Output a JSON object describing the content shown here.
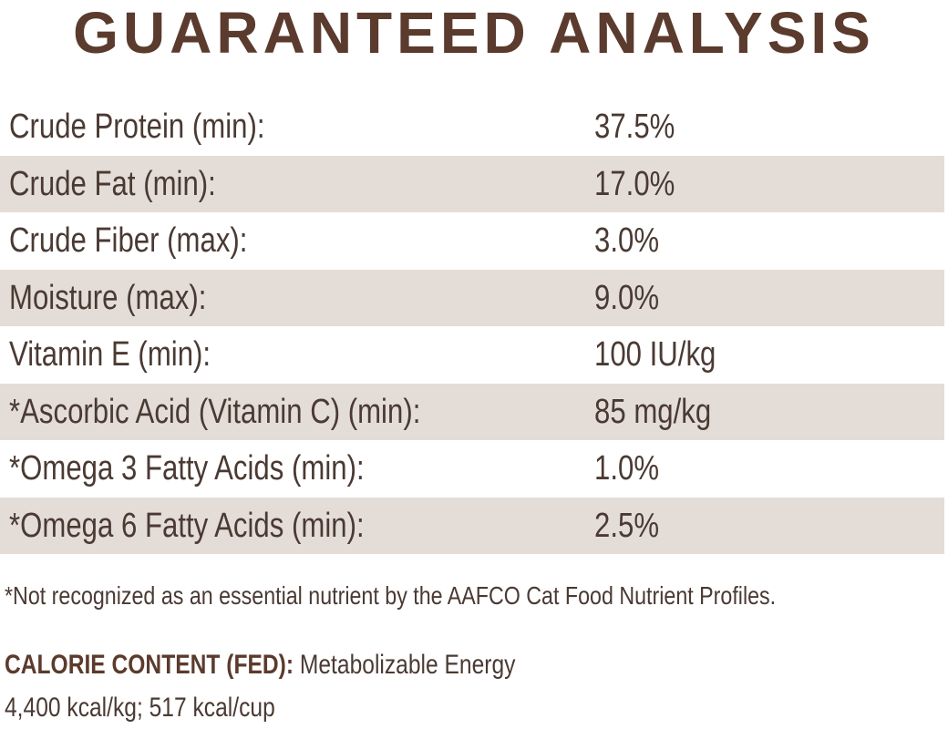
{
  "header": {
    "title": "GUARANTEED ANALYSIS"
  },
  "table": {
    "rows": [
      [
        "Crude Protein (min):",
        "37.5%"
      ],
      [
        "Crude Fat (min):",
        "17.0%"
      ],
      [
        "Crude Fiber (max):",
        "3.0%"
      ],
      [
        "Moisture (max):",
        "9.0%"
      ],
      [
        "Vitamin E (min):",
        "100 IU/kg"
      ],
      [
        "*Ascorbic Acid (Vitamin C) (min):",
        "85 mg/kg"
      ],
      [
        "*Omega 3 Fatty Acids (min):",
        "1.0%"
      ],
      [
        "*Omega 6 Fatty Acids (min):",
        "2.5%"
      ]
    ]
  },
  "footnote": "*Not recognized as an essential nutrient by the AAFCO Cat Food Nutrient Profiles.",
  "calorie": {
    "label": "CALORIE CONTENT (FED):",
    "text": "Metabolizable Energy",
    "line2": "4,400 kcal/kg; 517 kcal/cup"
  }
}
